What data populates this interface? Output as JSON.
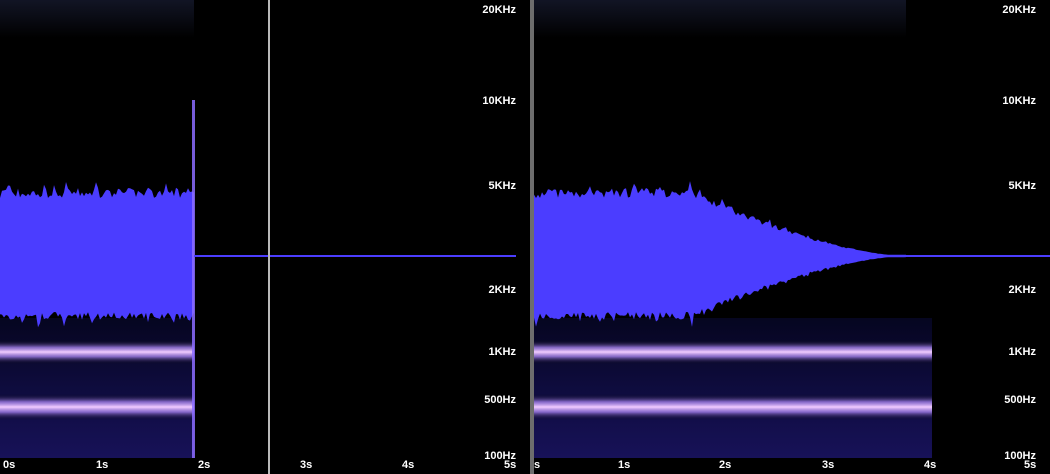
{
  "colors": {
    "background": "#000000",
    "signal": "#4b3dff",
    "band_glow": "#f2ccff",
    "band_core": "#b48cff",
    "divider": "#6d6d6d",
    "playhead": "#b9b9b9",
    "label": "#ffffff"
  },
  "left_panel": {
    "freq_labels": [
      "20KHz",
      "10KHz",
      "5KHz",
      "2KHz",
      "1KHz",
      "500Hz",
      "100Hz"
    ],
    "time_labels": [
      "0s",
      "1s",
      "2s",
      "3s",
      "4s",
      "5s"
    ],
    "description_effect": "hard cut at 2s",
    "playhead_time": "2.5s"
  },
  "right_panel": {
    "freq_labels": [
      "20KHz",
      "10KHz",
      "5KHz",
      "2KHz",
      "1KHz",
      "500Hz",
      "100Hz"
    ],
    "time_labels": [
      "s",
      "1s",
      "2s",
      "3s",
      "4s",
      "5s"
    ],
    "description_effect": "fade-out from 1.5s to 3.6s"
  }
}
